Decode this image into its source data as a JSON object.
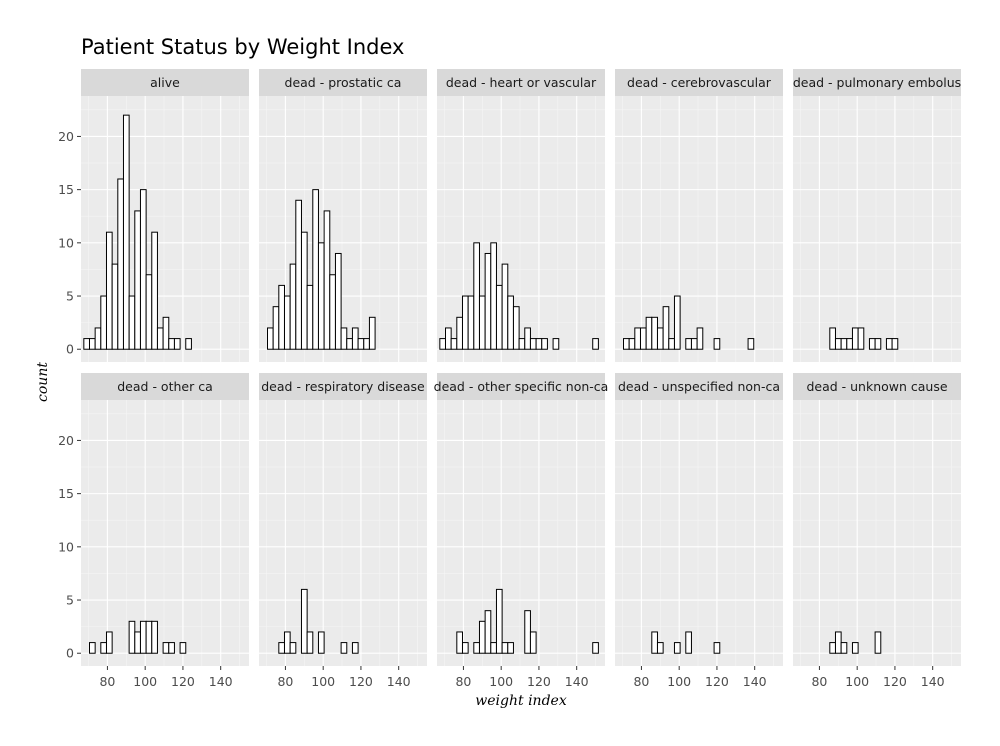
{
  "chart_data": {
    "type": "bar",
    "title": "Patient Status by Weight Index",
    "xlabel": "weight index",
    "ylabel": "count",
    "xlim": [
      66,
      155
    ],
    "ylim": [
      -1.2,
      23.8
    ],
    "x_ticks": [
      80,
      100,
      120,
      140
    ],
    "y_ticks": [
      0,
      5,
      10,
      15,
      20
    ],
    "bins": [
      69,
      72,
      75,
      78,
      81,
      84,
      87,
      90,
      93,
      96,
      99,
      102,
      105,
      108,
      111,
      114,
      117,
      120,
      123,
      126,
      129,
      132,
      135,
      138,
      141,
      144,
      147,
      150
    ],
    "bin_width": 3,
    "grid": true,
    "panels": [
      {
        "label": "alive",
        "values": [
          1,
          1,
          2,
          5,
          11,
          8,
          16,
          22,
          5,
          13,
          15,
          7,
          11,
          2,
          3,
          1,
          1,
          0,
          1,
          0,
          0,
          0,
          0,
          0,
          0,
          0,
          0,
          0
        ]
      },
      {
        "label": "dead - prostatic ca",
        "values": [
          0,
          2,
          4,
          6,
          5,
          8,
          14,
          11,
          6,
          15,
          10,
          13,
          7,
          9,
          2,
          1,
          2,
          1,
          1,
          3,
          0,
          0,
          0,
          0,
          0,
          0,
          0,
          0
        ]
      },
      {
        "label": "dead - heart or vascular",
        "values": [
          1,
          2,
          1,
          3,
          5,
          5,
          10,
          5,
          9,
          10,
          6,
          8,
          5,
          4,
          1,
          2,
          1,
          1,
          1,
          0,
          1,
          0,
          0,
          0,
          0,
          0,
          0,
          1
        ]
      },
      {
        "label": "dead - cerebrovascular",
        "values": [
          0,
          1,
          1,
          2,
          2,
          3,
          3,
          2,
          4,
          1,
          5,
          0,
          1,
          1,
          2,
          0,
          0,
          1,
          0,
          0,
          0,
          0,
          0,
          1,
          0,
          0,
          0,
          0
        ]
      },
      {
        "label": "dead - pulmonary embolus",
        "values": [
          0,
          0,
          0,
          0,
          0,
          0,
          2,
          1,
          1,
          1,
          2,
          2,
          0,
          1,
          1,
          0,
          1,
          1,
          0,
          0,
          0,
          0,
          0,
          0,
          0,
          0,
          0,
          0
        ]
      },
      {
        "label": "dead - other ca",
        "values": [
          0,
          1,
          0,
          1,
          2,
          0,
          0,
          0,
          3,
          2,
          3,
          3,
          3,
          0,
          1,
          1,
          0,
          1,
          0,
          0,
          0,
          0,
          0,
          0,
          0,
          0,
          0,
          0
        ]
      },
      {
        "label": "dead - respiratory disease",
        "values": [
          0,
          0,
          0,
          1,
          2,
          1,
          0,
          6,
          2,
          0,
          2,
          0,
          0,
          0,
          1,
          0,
          1,
          0,
          0,
          0,
          0,
          0,
          0,
          0,
          0,
          0,
          0,
          0
        ]
      },
      {
        "label": "dead - other specific non-ca",
        "values": [
          0,
          0,
          0,
          2,
          1,
          0,
          1,
          3,
          4,
          1,
          6,
          1,
          1,
          0,
          0,
          4,
          2,
          0,
          0,
          0,
          0,
          0,
          0,
          0,
          0,
          0,
          0,
          1
        ]
      },
      {
        "label": "dead - unspecified non-ca",
        "values": [
          0,
          0,
          0,
          0,
          0,
          0,
          2,
          1,
          0,
          0,
          1,
          0,
          2,
          0,
          0,
          0,
          0,
          1,
          0,
          0,
          0,
          0,
          0,
          0,
          0,
          0,
          0,
          0
        ]
      },
      {
        "label": "dead - unknown cause",
        "values": [
          0,
          0,
          0,
          0,
          0,
          0,
          1,
          2,
          1,
          0,
          1,
          0,
          0,
          0,
          2,
          0,
          0,
          0,
          0,
          0,
          0,
          0,
          0,
          0,
          0,
          0,
          0,
          0
        ]
      }
    ],
    "colors": {
      "panel_bg": "#ebebeb",
      "strip_bg": "#d9d9d9",
      "grid_major": "#ffffff",
      "grid_minor": "#f5f5f5",
      "bar_fill": "#ffffff",
      "bar_stroke": "#000000"
    }
  }
}
